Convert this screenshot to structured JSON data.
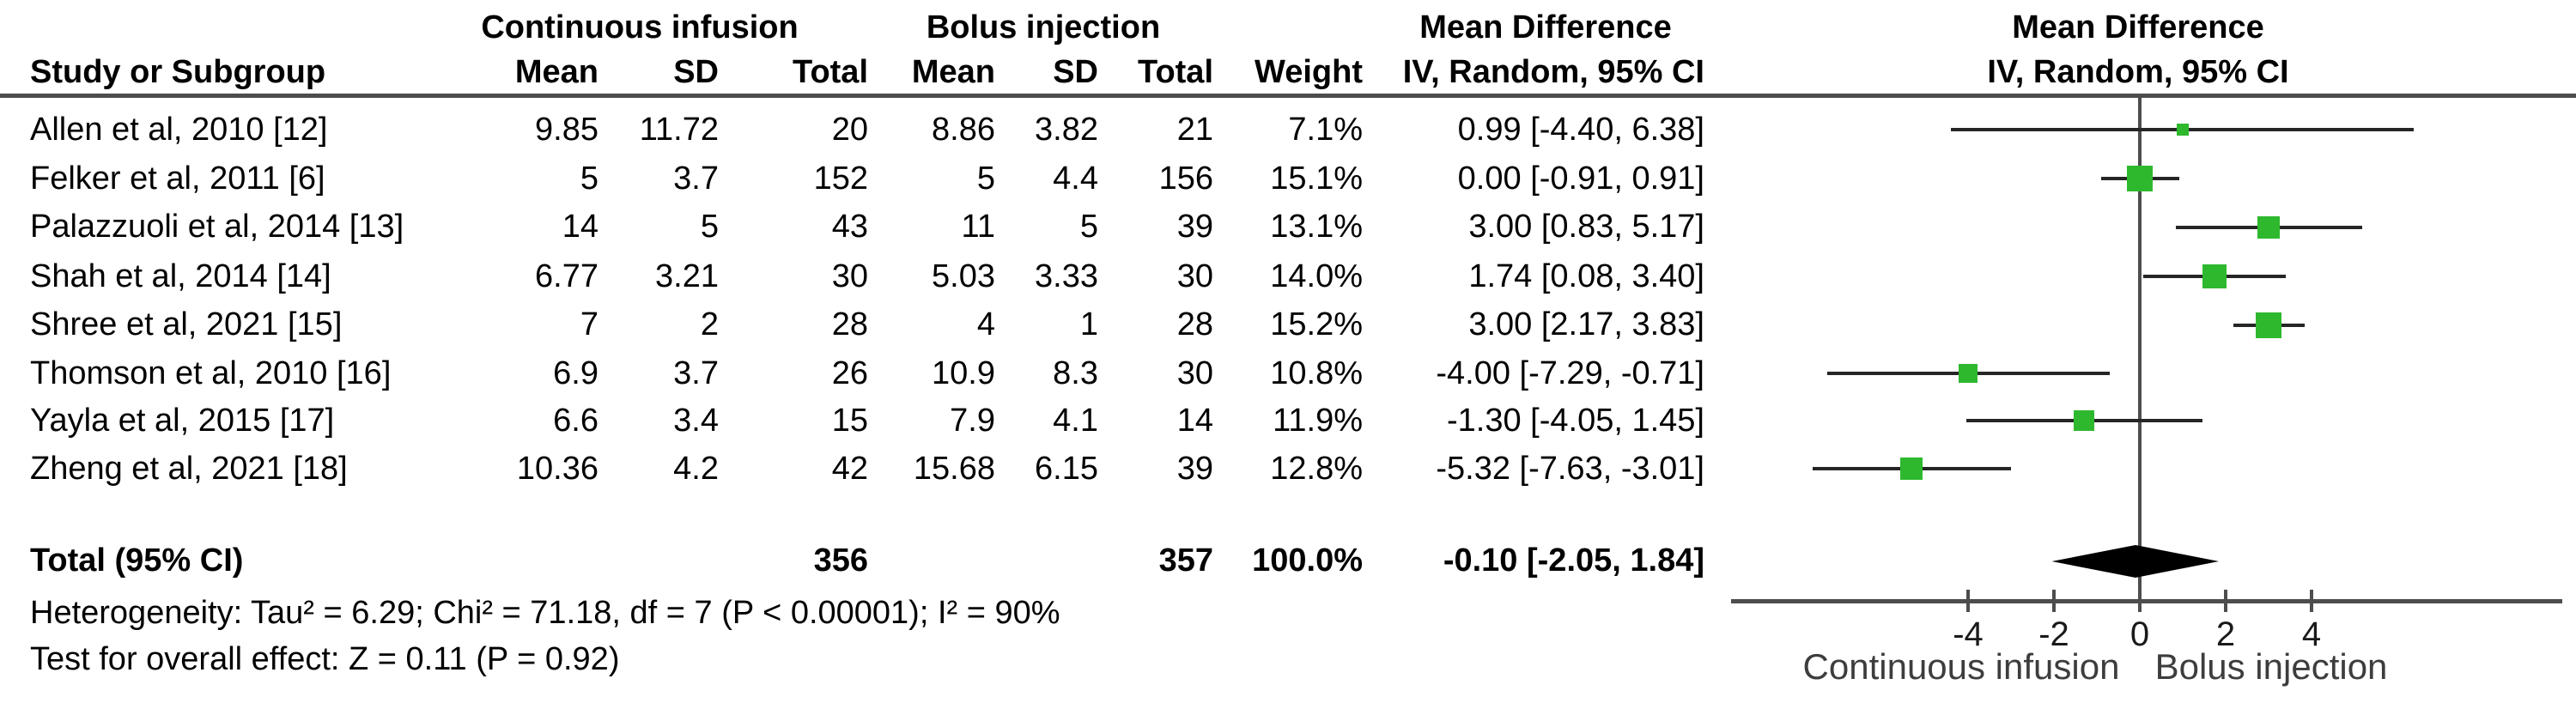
{
  "title_headers": {
    "group1": "Continuous infusion",
    "group2": "Bolus injection",
    "effect_table": "Mean Difference",
    "method_table": "IV, Random, 95% CI",
    "effect_plot": "Mean Difference",
    "method_plot": "IV, Random, 95% CI"
  },
  "columns": {
    "study": "Study or Subgroup",
    "mean1": "Mean",
    "sd1": "SD",
    "total1": "Total",
    "mean2": "Mean",
    "sd2": "SD",
    "total2": "Total",
    "weight": "Weight"
  },
  "rows": [
    {
      "study": "Allen et al, 2010 [12]",
      "mean1": "9.85",
      "sd1": "11.72",
      "total1": "20",
      "mean2": "8.86",
      "sd2": "3.82",
      "total2": "21",
      "weight": "7.1%",
      "ci": "0.99 [-4.40, 6.38]"
    },
    {
      "study": "Felker et al, 2011 [6]",
      "mean1": "5",
      "sd1": "3.7",
      "total1": "152",
      "mean2": "5",
      "sd2": "4.4",
      "total2": "156",
      "weight": "15.1%",
      "ci": "0.00 [-0.91, 0.91]"
    },
    {
      "study": "Palazzuoli et al, 2014 [13]",
      "mean1": "14",
      "sd1": "5",
      "total1": "43",
      "mean2": "11",
      "sd2": "5",
      "total2": "39",
      "weight": "13.1%",
      "ci": "3.00 [0.83, 5.17]"
    },
    {
      "study": "Shah et al, 2014 [14]",
      "mean1": "6.77",
      "sd1": "3.21",
      "total1": "30",
      "mean2": "5.03",
      "sd2": "3.33",
      "total2": "30",
      "weight": "14.0%",
      "ci": "1.74 [0.08, 3.40]"
    },
    {
      "study": "Shree et al, 2021 [15]",
      "mean1": "7",
      "sd1": "2",
      "total1": "28",
      "mean2": "4",
      "sd2": "1",
      "total2": "28",
      "weight": "15.2%",
      "ci": "3.00 [2.17, 3.83]"
    },
    {
      "study": "Thomson et al, 2010 [16]",
      "mean1": "6.9",
      "sd1": "3.7",
      "total1": "26",
      "mean2": "10.9",
      "sd2": "8.3",
      "total2": "30",
      "weight": "10.8%",
      "ci": "-4.00 [-7.29, -0.71]"
    },
    {
      "study": "Yayla et al, 2015 [17]",
      "mean1": "6.6",
      "sd1": "3.4",
      "total1": "15",
      "mean2": "7.9",
      "sd2": "4.1",
      "total2": "14",
      "weight": "11.9%",
      "ci": "-1.30 [-4.05, 1.45]"
    },
    {
      "study": "Zheng et al, 2021 [18]",
      "mean1": "10.36",
      "sd1": "4.2",
      "total1": "42",
      "mean2": "15.68",
      "sd2": "6.15",
      "total2": "39",
      "weight": "12.8%",
      "ci": "-5.32 [-7.63, -3.01]"
    }
  ],
  "total_row": {
    "label": "Total (95% CI)",
    "total1": "356",
    "total2": "357",
    "weight": "100.0%",
    "ci": "-0.10 [-2.05, 1.84]"
  },
  "footnotes": {
    "heterogeneity": "Heterogeneity: Tau² = 6.29; Chi² = 71.18, df = 7 (P < 0.00001); I² = 90%",
    "overall_effect": "Test for overall effect: Z = 0.11 (P = 0.92)"
  },
  "chart_data": {
    "type": "forest",
    "title": "Mean Difference",
    "method": "IV, Random, 95% CI",
    "x_ticks": [
      -4,
      -2,
      0,
      2,
      4
    ],
    "xlim": [
      -9.5,
      9.8
    ],
    "marker_color": "#2eb82e",
    "favours_left": "Continuous infusion",
    "favours_right": "Bolus injection",
    "studies": [
      {
        "name": "Allen et al, 2010 [12]",
        "md": 0.99,
        "ci_low": -4.4,
        "ci_high": 6.38,
        "weight_pct": 7.1
      },
      {
        "name": "Felker et al, 2011 [6]",
        "md": 0.0,
        "ci_low": -0.91,
        "ci_high": 0.91,
        "weight_pct": 15.1
      },
      {
        "name": "Palazzuoli et al, 2014 [13]",
        "md": 3.0,
        "ci_low": 0.83,
        "ci_high": 5.17,
        "weight_pct": 13.1
      },
      {
        "name": "Shah et al, 2014 [14]",
        "md": 1.74,
        "ci_low": 0.08,
        "ci_high": 3.4,
        "weight_pct": 14.0
      },
      {
        "name": "Shree et al, 2021 [15]",
        "md": 3.0,
        "ci_low": 2.17,
        "ci_high": 3.83,
        "weight_pct": 15.2
      },
      {
        "name": "Thomson et al, 2010 [16]",
        "md": -4.0,
        "ci_low": -7.29,
        "ci_high": -0.71,
        "weight_pct": 10.8
      },
      {
        "name": "Yayla et al, 2015 [17]",
        "md": -1.3,
        "ci_low": -4.05,
        "ci_high": 1.45,
        "weight_pct": 11.9
      },
      {
        "name": "Zheng et al, 2021 [18]",
        "md": -5.32,
        "ci_low": -7.63,
        "ci_high": -3.01,
        "weight_pct": 12.8
      }
    ],
    "total": {
      "md": -0.1,
      "ci_low": -2.05,
      "ci_high": 1.84,
      "weight_pct": 100.0
    }
  }
}
